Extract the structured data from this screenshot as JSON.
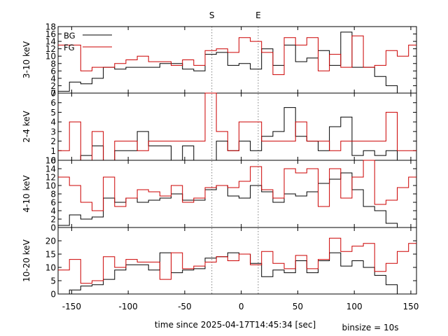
{
  "chart_data": {
    "type": "line",
    "step": true,
    "xlabel": "time since 2025-04-17T14:45:34 [sec]",
    "binsize_label": "binsize = 10s",
    "xlim": [
      -162,
      155
    ],
    "xticks": [
      -150,
      -100,
      -50,
      0,
      50,
      100,
      150
    ],
    "xtick_labels": [
      "-150",
      "-100",
      "-50",
      "0",
      "50",
      "100",
      "150"
    ],
    "markers": [
      {
        "label": "S",
        "x": -26
      },
      {
        "label": "E",
        "x": 15
      }
    ],
    "colors": {
      "BG": "#000000",
      "FG": "#cc0000",
      "marker": "#808080"
    },
    "legend": {
      "placement": "top-left",
      "entries": [
        "BG",
        "FG"
      ]
    },
    "bin_edges": [
      -162,
      -152,
      -142,
      -132,
      -122,
      -112,
      -102,
      -92,
      -82,
      -72,
      -62,
      -52,
      -42,
      -32,
      -22,
      -12,
      -2,
      8,
      18,
      28,
      38,
      48,
      58,
      68,
      78,
      88,
      98,
      108,
      118,
      128,
      138,
      148,
      158
    ],
    "panels": [
      {
        "ylabel": "3-10 keV",
        "ylim": [
          0,
          18
        ],
        "yticks": [
          0,
          2,
          4,
          6,
          8,
          10,
          12,
          14,
          16,
          18
        ],
        "ytick_labels": [
          "0",
          "2",
          "4",
          "6",
          "8",
          "10",
          "12",
          "14",
          "16",
          "18"
        ],
        "series": [
          {
            "name": "BG",
            "values": [
              0.5,
              3,
              2.5,
              4,
              7,
              6.5,
              7,
              7,
              7,
              8,
              8,
              6.5,
              6,
              10.5,
              11,
              7.5,
              8,
              6.5,
              12,
              7.5,
              13,
              8.5,
              9.5,
              11.5,
              7.5,
              16.5,
              7,
              7,
              4.5,
              2,
              0,
              0
            ]
          },
          {
            "name": "FG",
            "values": [
              13,
              13,
              6,
              7,
              7,
              8,
              9,
              10,
              8.5,
              8.5,
              7.5,
              9,
              7.5,
              11.5,
              12,
              11,
              15,
              14,
              11,
              5,
              15,
              13,
              15,
              6,
              10.5,
              7,
              15.5,
              7,
              7.5,
              11.5,
              10,
              13
            ]
          }
        ]
      },
      {
        "ylabel": "2-4 keV",
        "ylim": [
          0,
          7
        ],
        "yticks": [
          0,
          1,
          2,
          3,
          4,
          5,
          6,
          7
        ],
        "ytick_labels": [
          "0",
          "1",
          "2",
          "3",
          "4",
          "5",
          "6",
          "7"
        ],
        "series": [
          {
            "name": "BG",
            "values": [
              0,
              0,
              0.5,
              1.5,
              0,
              1,
              1,
              3,
              1.5,
              1.5,
              0,
              1.5,
              0,
              0,
              2,
              1,
              2,
              1,
              2.5,
              3,
              5.5,
              2.5,
              2,
              1,
              3.5,
              4.5,
              0.5,
              1,
              0.5,
              1,
              0,
              0
            ]
          },
          {
            "name": "FG",
            "values": [
              1,
              4,
              0,
              3,
              0,
              2,
              2,
              1,
              2,
              2,
              2,
              2,
              2,
              7,
              3,
              1,
              4,
              4,
              2,
              2,
              2,
              4,
              2,
              2,
              1,
              2,
              2,
              2,
              2,
              5,
              1,
              1
            ]
          }
        ]
      },
      {
        "ylabel": "4-10 keV",
        "ylim": [
          0,
          16
        ],
        "yticks": [
          0,
          2,
          4,
          6,
          8,
          10,
          12,
          14,
          16
        ],
        "ytick_labels": [
          "0",
          "2",
          "4",
          "6",
          "8",
          "10",
          "12",
          "14",
          "16"
        ],
        "series": [
          {
            "name": "BG",
            "values": [
              0.5,
              3,
              2,
              2.5,
              7,
              6,
              7,
              6,
              6.5,
              7,
              8,
              6.5,
              6.5,
              9,
              10,
              7.5,
              7,
              10,
              8.5,
              6,
              8,
              7.5,
              8.5,
              10.5,
              11.5,
              13,
              9,
              5,
              4,
              1,
              0,
              0
            ]
          },
          {
            "name": "FG",
            "values": [
              12,
              10,
              6,
              4,
              12,
              5,
              7,
              9,
              8.5,
              7.5,
              10,
              6,
              7,
              9.5,
              10,
              9.5,
              11,
              14.5,
              9,
              7,
              14,
              13,
              14,
              5,
              14,
              7,
              12,
              16,
              5.5,
              6.5,
              9.5,
              12
            ]
          }
        ]
      },
      {
        "ylabel": "10-20 keV",
        "ylim": [
          0,
          25
        ],
        "yticks": [
          0,
          5,
          10,
          15,
          20
        ],
        "ytick_labels": [
          "0",
          "5",
          "10",
          "15",
          "20"
        ],
        "series": [
          {
            "name": "BG",
            "values": [
              0,
              1.5,
              3,
              3.5,
              5.5,
              9,
              11,
              11,
              9,
              15.5,
              8,
              9,
              9.5,
              13.5,
              14,
              15.5,
              15,
              11.5,
              6.5,
              9,
              8,
              12.5,
              8,
              12.5,
              15.5,
              10.5,
              12.5,
              10,
              7,
              3.5,
              0,
              0
            ]
          },
          {
            "name": "FG",
            "values": [
              9,
              13,
              4,
              5,
              14,
              10,
              13,
              12,
              12,
              5.5,
              15.5,
              9.5,
              10.5,
              12,
              14,
              12.5,
              15,
              11,
              16,
              11.5,
              9.5,
              14.5,
              9.5,
              13,
              21,
              16,
              18,
              19,
              8.5,
              11.5,
              16,
              19
            ]
          }
        ]
      }
    ]
  }
}
